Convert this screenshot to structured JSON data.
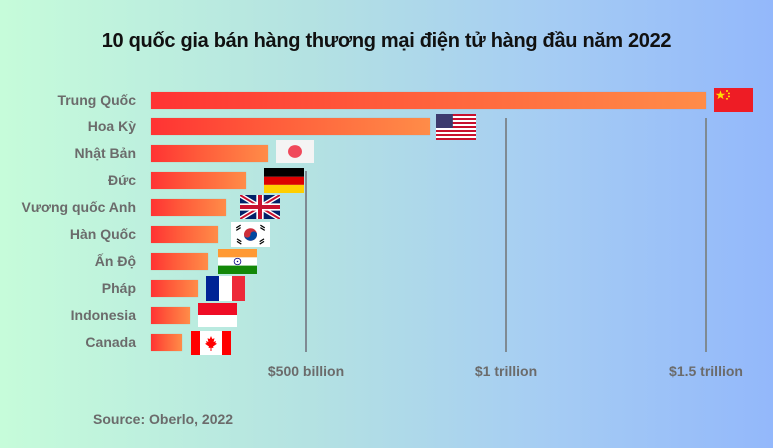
{
  "title": "10 quốc gia bán hàng thương mại điện tử hàng đầu năm 2022",
  "source": "Source: Oberlo, 2022",
  "colors": {
    "bar_start": "#ff3333",
    "bar_end": "#ff8c48",
    "background_left": "#c6fcda",
    "background_right": "#93b8fb",
    "label": "#6b6b6b",
    "gridline": "#7f8a93"
  },
  "axis": {
    "ticks": [
      {
        "label": "$500 billion",
        "value": 500
      },
      {
        "label": "$1 trillion",
        "value": 1000
      },
      {
        "label": "$1.5 trillion",
        "value": 1500
      }
    ]
  },
  "chart_data": {
    "type": "bar",
    "orientation": "horizontal",
    "title": "10 quốc gia bán hàng thương mại điện tử hàng đầu năm 2022",
    "xlabel": "",
    "ylabel": "",
    "unit": "USD billion",
    "categories": [
      "Trung Quốc",
      "Hoa Kỳ",
      "Nhật Bản",
      "Đức",
      "Vương quốc Anh",
      "Hàn Quốc",
      "Ấn Độ",
      "Pháp",
      "Indonesia",
      "Canada"
    ],
    "values": [
      1500,
      810,
      405,
      350,
      300,
      280,
      255,
      230,
      210,
      190
    ],
    "flags": [
      "china-flag",
      "usa-flag",
      "japan-flag",
      "germany-flag",
      "uk-flag",
      "south-korea-flag",
      "india-flag",
      "france-flag",
      "indonesia-flag",
      "canada-flag"
    ],
    "x_tick_labels": [
      "$500 billion",
      "$1 trillion",
      "$1.5 trillion"
    ],
    "x_tick_values": [
      500,
      1000,
      1500
    ],
    "xlim": [
      0,
      1600
    ],
    "grid": "vertical gridlines at ticks",
    "legend": "none (country flags placed at bar ends)",
    "annotation": "Source: Oberlo, 2022"
  }
}
